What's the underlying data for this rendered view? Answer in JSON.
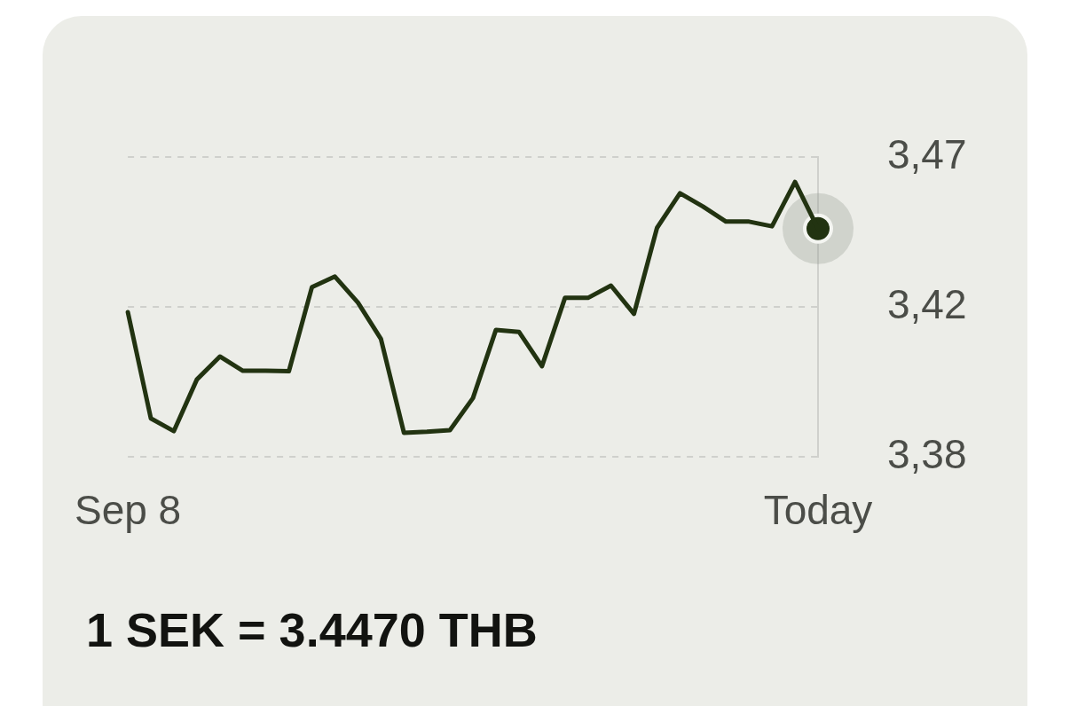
{
  "chart_data": {
    "type": "line",
    "title": "1 SEK = 3.4470 THB",
    "categories": [
      "Sep 8",
      null,
      null,
      null,
      null,
      null,
      null,
      null,
      null,
      null,
      null,
      null,
      null,
      null,
      null,
      null,
      null,
      null,
      null,
      null,
      null,
      null,
      null,
      null,
      null,
      null,
      null,
      null,
      null,
      null,
      "Today"
    ],
    "series": [
      {
        "type": "line",
        "color": "#223311",
        "values": [
          3.4219,
          3.39,
          3.3862,
          3.4017,
          3.4086,
          3.4043,
          3.4043,
          3.4042,
          3.4294,
          3.4326,
          3.4248,
          3.4139,
          3.3857,
          3.386,
          3.3865,
          3.3961,
          3.4166,
          3.416,
          3.4057,
          3.4262,
          3.4262,
          3.4299,
          3.4214,
          3.4472,
          3.4576,
          3.4536,
          3.4491,
          3.4491,
          3.4477,
          3.461,
          3.447
        ]
      },
      {
        "type": "scatter",
        "color": "#223311",
        "marker": "circle",
        "x": [
          "Today"
        ],
        "values": [
          3.447
        ]
      }
    ],
    "ylim": [
      3.3785,
      3.4685
    ],
    "yticks": [
      {
        "value": 3.3785,
        "label": "3,38"
      },
      {
        "value": 3.4235,
        "label": "3,42"
      },
      {
        "value": 3.4685,
        "label": "3,47"
      }
    ],
    "grid": "y",
    "line_style": "solid"
  }
}
